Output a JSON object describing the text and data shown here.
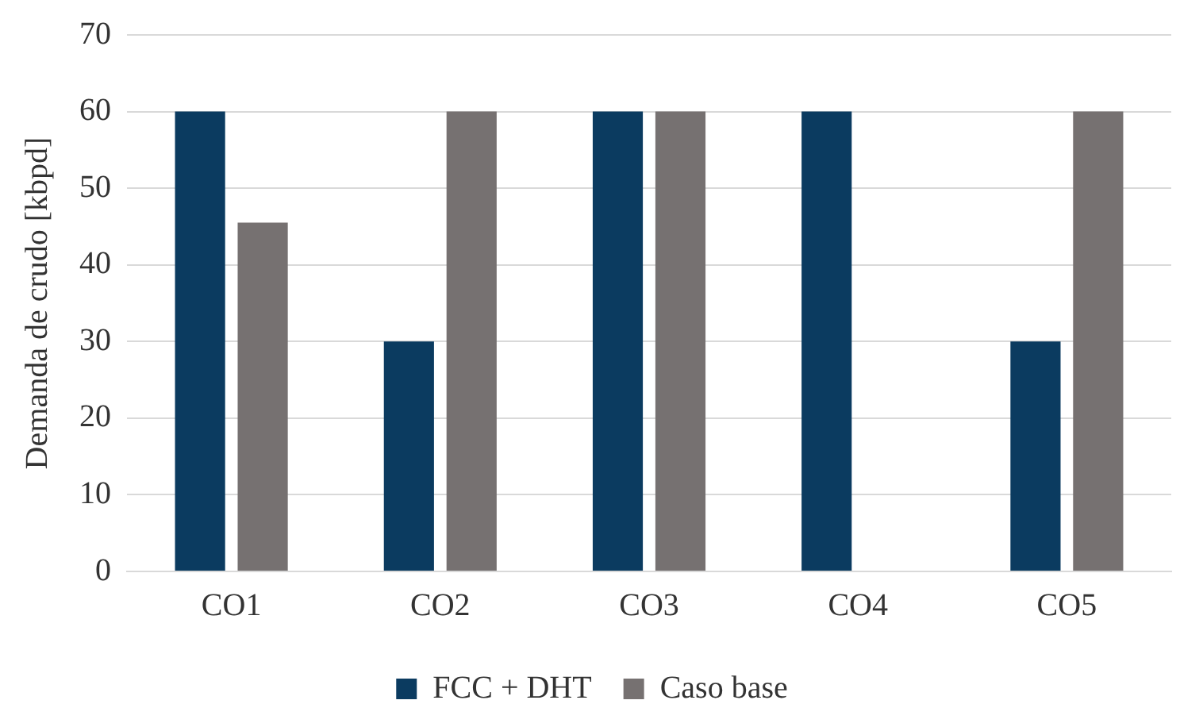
{
  "chart_data": {
    "type": "bar",
    "ylabel": "Demanda de crudo [kbpd]",
    "categories": [
      "CO1",
      "CO2",
      "CO3",
      "CO4",
      "CO5"
    ],
    "series": [
      {
        "name": "FCC + DHT",
        "color": "#0b3b60",
        "values": [
          60,
          30,
          60,
          60,
          30
        ]
      },
      {
        "name": "Caso base",
        "color": "#767171",
        "values": [
          45.5,
          60,
          60,
          0,
          60
        ]
      }
    ],
    "ylim": [
      0,
      70
    ],
    "yticks": [
      0,
      10,
      20,
      30,
      40,
      50,
      60,
      70
    ],
    "grid": "y",
    "legend": "bottom"
  }
}
